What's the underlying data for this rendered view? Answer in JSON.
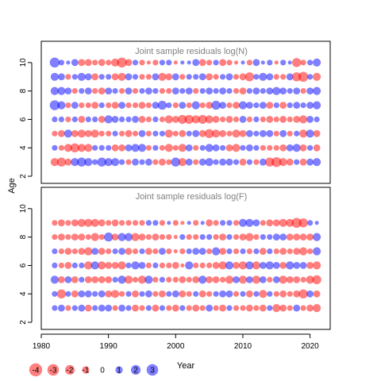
{
  "ylabel": "Age",
  "xlabel": "Year",
  "colors": {
    "positive": "#0000ff",
    "negative": "#ff0000",
    "frame": "#000000",
    "panel_title": "#808080"
  },
  "x_ticks": [
    "1980",
    "1990",
    "2000",
    "2010",
    "2020"
  ],
  "y_ticks": [
    "2",
    "4",
    "6",
    "8",
    "10"
  ],
  "legend": {
    "values": [
      -4,
      -3,
      -2,
      -1,
      0,
      1,
      2,
      3
    ],
    "labels": [
      "-4",
      "-3",
      "-2",
      "-1",
      "0",
      "1",
      "2",
      "3"
    ]
  },
  "chart_data": [
    {
      "type": "scatter",
      "subtype": "bubble",
      "title": "Joint sample residuals log(N)",
      "xlim": [
        1980,
        2023
      ],
      "ylim": [
        1.5,
        11.5
      ],
      "years": [
        1982,
        2021
      ],
      "ages": [
        3,
        10
      ],
      "grid": false,
      "rows": [
        {
          "age": 10,
          "r": [
            3,
            1,
            0.5,
            1.5,
            -1.5,
            -1.5,
            -1,
            -1.5,
            -1,
            -2,
            -3,
            -1.5,
            1,
            -1,
            -0.5,
            -1,
            1,
            1,
            -0.5,
            0.5,
            0.5,
            1.5,
            -1.5,
            -1,
            1,
            -1.5,
            -1,
            -0.5,
            0.5,
            -1,
            1.5,
            0.5,
            1,
            -0.5,
            1,
            0.5,
            -2.5,
            -1,
            1,
            2
          ]
        },
        {
          "age": 9,
          "r": [
            2,
            1.5,
            -1,
            1,
            2,
            1.5,
            -1.5,
            1,
            1,
            -1.5,
            -2,
            1.5,
            1,
            -1,
            -1,
            1.5,
            -2,
            -1.5,
            1.5,
            -1,
            1,
            1,
            1.5,
            -1.5,
            -1,
            1,
            1.5,
            -1,
            -1.5,
            -2.5,
            1,
            2,
            1.5,
            -1,
            -1,
            1.5,
            -2.5,
            -3,
            1,
            -2
          ]
        },
        {
          "age": 8,
          "r": [
            2,
            2,
            1.5,
            -1,
            1,
            1.5,
            -1,
            -1.5,
            1.5,
            1,
            -1,
            1.5,
            -1,
            1,
            1.5,
            1,
            -1,
            -1,
            1.5,
            1,
            1.5,
            -1,
            1,
            1.5,
            1,
            1.5,
            1,
            -1,
            -1.5,
            1,
            1.5,
            1,
            1.5,
            2,
            1.5,
            1,
            1.5,
            -1,
            1.5,
            2
          ]
        },
        {
          "age": 7,
          "r": [
            3,
            2,
            -1,
            1.5,
            -1,
            -1,
            -1.5,
            1,
            -1,
            -1.5,
            1.5,
            -1,
            -1,
            -1.5,
            -1,
            1.5,
            2.5,
            1,
            -1,
            1.5,
            -1,
            2,
            -1,
            -1.5,
            2.5,
            1.5,
            -1,
            -1.5,
            2,
            1.5,
            1,
            1.5,
            -1.5,
            1,
            -1.5,
            1,
            1.5,
            1,
            1.5,
            2
          ]
        },
        {
          "age": 6,
          "r": [
            1,
            1,
            -1,
            1,
            -1.5,
            1,
            1,
            -1.5,
            2,
            1.5,
            1,
            1,
            1.5,
            -1.5,
            -1,
            1,
            -1,
            -2,
            -1.5,
            -2.5,
            -2.5,
            -2,
            -2.5,
            -2,
            -1.5,
            -1,
            -1.5,
            -1,
            1.5,
            -1,
            1,
            -1,
            -1.5,
            -1,
            -1.5,
            -1,
            -1.5,
            -2,
            1.5,
            1
          ]
        },
        {
          "age": 5,
          "r": [
            -1,
            -1.5,
            2,
            -1.5,
            -2,
            -1.5,
            -2,
            -1,
            -1,
            1,
            -1,
            -1.5,
            -1,
            1.5,
            -1,
            1,
            1,
            -2,
            -1,
            -1.5,
            1,
            1.5,
            -1.5,
            -2.5,
            -2,
            -1.5,
            -1,
            -2,
            -1.5,
            1.5,
            1,
            1.5,
            1.5,
            -1,
            1.5,
            -1,
            1,
            -2,
            2,
            -1.5
          ]
        },
        {
          "age": 4,
          "r": [
            1,
            -1,
            -2,
            -2.5,
            -2,
            -2,
            1,
            1,
            1,
            -1.5,
            -1.5,
            1.5,
            2,
            2,
            -1,
            1,
            -1,
            -2,
            -1,
            -2,
            1.5,
            -1,
            1,
            2,
            1.5,
            1,
            -1.5,
            -2,
            1,
            1.5,
            1,
            -1,
            -1,
            -1,
            -1.5,
            1.5,
            2,
            -1.5,
            1,
            -1.5
          ]
        },
        {
          "age": 3,
          "r": [
            -2,
            -2.5,
            -1.5,
            2,
            2.5,
            2,
            1,
            2.5,
            2,
            2,
            1,
            -1,
            1.5,
            1,
            1.5,
            -1,
            -1.5,
            -1,
            2.5,
            -2,
            1.5,
            -1,
            1.5,
            2,
            1,
            1.5,
            1.5,
            1,
            -1.5,
            1,
            -1,
            1.5,
            -2.5,
            -3,
            -2,
            -1.5,
            1,
            -1.5,
            1.5,
            2
          ]
        }
      ]
    },
    {
      "type": "scatter",
      "subtype": "bubble",
      "title": "Joint sample residuals log(F)",
      "xlim": [
        1980,
        2023
      ],
      "ylim": [
        1.5,
        11.5
      ],
      "years": [
        1982,
        2021
      ],
      "ages": [
        3,
        9
      ],
      "grid": false,
      "rows": [
        {
          "age": 9,
          "r": [
            -1,
            -1.5,
            -1,
            -1.5,
            -2,
            -2,
            -2,
            -1.5,
            -1,
            -1.5,
            -1,
            -1,
            -1,
            -1,
            1,
            1,
            -1,
            0.5,
            -1,
            -0.5,
            0.5,
            -1,
            0.5,
            -1.5,
            -1,
            1,
            1,
            -1,
            2,
            2,
            1.5,
            -1,
            -1.5,
            -1.5,
            -2,
            -2,
            -3,
            -2.5,
            1,
            0.5
          ]
        },
        {
          "age": 8,
          "r": [
            -1,
            -1.5,
            -1,
            -1.5,
            -1.5,
            -1,
            -2,
            -1,
            2.5,
            -1.5,
            2,
            2,
            -2,
            -1.5,
            -1,
            -1.5,
            -1,
            -1,
            -0.5,
            1,
            -1,
            -1,
            1,
            1,
            -1,
            -1.5,
            1,
            -1,
            -1.5,
            -2,
            -1,
            1,
            1,
            1.5,
            1.5,
            -1.5,
            -1.5,
            -1.5,
            -1.5,
            2
          ]
        },
        {
          "age": 7,
          "r": [
            1,
            -1,
            -1.5,
            -1,
            -1.5,
            -2,
            1.5,
            -1.5,
            -1,
            1,
            1.5,
            -1.5,
            -1,
            1,
            -1.5,
            -1,
            1.5,
            -1,
            -0.5,
            -1,
            1,
            1.5,
            1.5,
            -1,
            2,
            -1.5,
            1,
            -1,
            1,
            -1,
            1,
            -1.5,
            1,
            -1,
            -1.5,
            -1,
            -1.5,
            -2,
            -1,
            2
          ]
        },
        {
          "age": 6,
          "r": [
            1,
            -1,
            -1.5,
            1,
            1,
            -2,
            2,
            -2,
            -1.5,
            -1.5,
            -2,
            1,
            2,
            1.5,
            -1,
            1,
            -1,
            -1,
            -1.5,
            -0.5,
            2,
            -1,
            -1,
            -1,
            -1.5,
            -2,
            2,
            -1.5,
            -2,
            2,
            -2,
            1.5,
            2,
            1.5,
            -1.5,
            2,
            1.5,
            1.5,
            -1.5,
            -2
          ]
        },
        {
          "age": 5,
          "r": [
            2,
            -1.5,
            1.5,
            -1.5,
            1,
            -1.5,
            -1.5,
            -1.5,
            -1.5,
            1,
            2,
            -2,
            -1,
            -2,
            2,
            -1,
            1,
            -1,
            -1,
            -1.5,
            -1,
            -1.5,
            2,
            -1.5,
            -1.5,
            -1,
            -2,
            1.5,
            -2,
            1.5,
            -2,
            1.5,
            -1,
            1.5,
            -2,
            -1.5,
            -1.5,
            -1,
            -2,
            -2.5
          ]
        },
        {
          "age": 4,
          "r": [
            1,
            -2.5,
            1,
            -1.5,
            1.5,
            1.5,
            1,
            1.5,
            -1.5,
            -2,
            -1,
            1,
            -1.5,
            1,
            1.5,
            -1,
            -1.5,
            1,
            1.5,
            -1.5,
            -1,
            1,
            -1.5,
            -1,
            1,
            1.5,
            1.5,
            -1,
            1,
            -1.5,
            1,
            -2,
            1,
            -1,
            -1.5,
            -1,
            -1.5,
            -2.5,
            1.5,
            -1.5
          ]
        },
        {
          "age": 3,
          "r": [
            1,
            1.5,
            -1,
            1,
            1.5,
            -1.5,
            1,
            1.5,
            1.5,
            -1,
            1.5,
            1,
            -1.5,
            -1,
            1,
            -1.5,
            1,
            -1,
            -1.5,
            1,
            -1,
            -1.5,
            -1,
            1.5,
            -1,
            -1.5,
            1,
            -1,
            -1,
            -1.5,
            -1,
            -1.5,
            1,
            -2,
            -1.5,
            -1,
            1.5,
            -1,
            -1.5,
            -2
          ]
        }
      ]
    }
  ]
}
